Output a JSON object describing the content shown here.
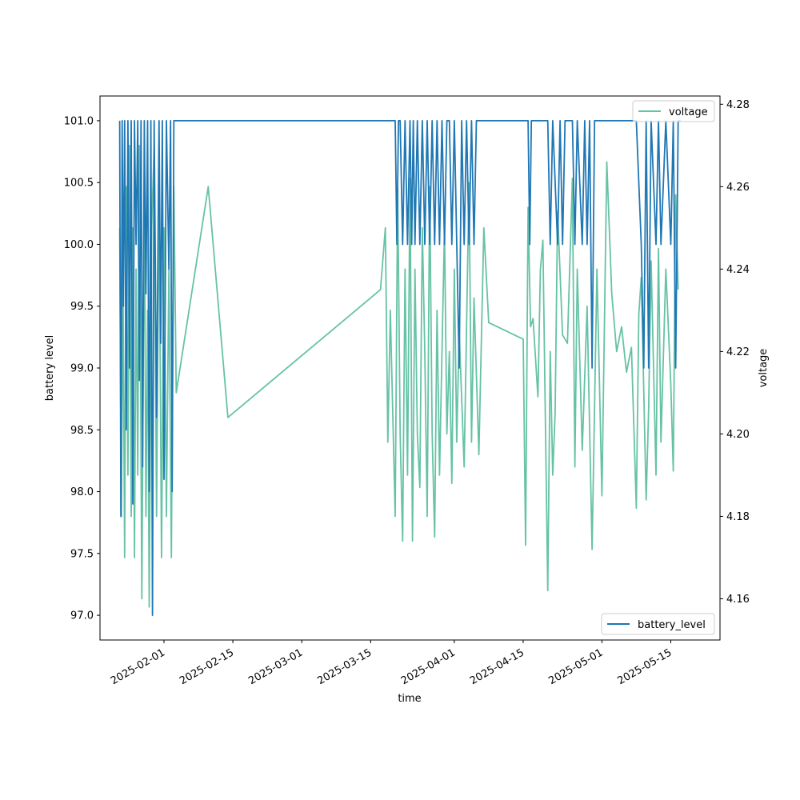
{
  "chart_data": {
    "type": "line",
    "xlabel": "time",
    "ylabel_left": "battery level",
    "ylabel_right": "voltage",
    "x_ticks": [
      "2025-02-01",
      "2025-02-15",
      "2025-03-01",
      "2025-03-15",
      "2025-04-01",
      "2025-04-15",
      "2025-05-01",
      "2025-05-15"
    ],
    "y_left_ticks": [
      "97.0",
      "97.5",
      "98.0",
      "98.5",
      "99.0",
      "99.5",
      "100.0",
      "100.5",
      "101.0"
    ],
    "y_right_ticks": [
      "4.16",
      "4.18",
      "4.20",
      "4.22",
      "4.24",
      "4.26",
      "4.28"
    ],
    "ylim_left": [
      96.8,
      101.2
    ],
    "ylim_right": [
      4.15,
      4.282
    ],
    "xlim": [
      "2025-01-19",
      "2025-05-25"
    ],
    "legend_placement": {
      "battery_level": "lower-right",
      "voltage": "upper-right"
    },
    "colors": {
      "battery_level": "#1f77b4",
      "voltage": "#66c2a5"
    },
    "series": [
      {
        "name": "battery_level",
        "axis": "left",
        "points": [
          [
            "2025-01-23",
            101.0
          ],
          [
            "2025-01-23",
            97.8
          ],
          [
            "2025-01-23",
            101.0
          ],
          [
            "2025-01-23",
            99.5
          ],
          [
            "2025-01-24",
            101.0
          ],
          [
            "2025-01-24",
            98.5
          ],
          [
            "2025-01-24",
            101.0
          ],
          [
            "2025-01-25",
            99.0
          ],
          [
            "2025-01-25",
            101.0
          ],
          [
            "2025-01-25",
            97.9
          ],
          [
            "2025-01-26",
            101.0
          ],
          [
            "2025-01-26",
            100.0
          ],
          [
            "2025-01-26",
            101.0
          ],
          [
            "2025-01-27",
            98.9
          ],
          [
            "2025-01-27",
            101.0
          ],
          [
            "2025-01-27",
            98.2
          ],
          [
            "2025-01-28",
            101.0
          ],
          [
            "2025-01-28",
            99.6
          ],
          [
            "2025-01-28",
            101.0
          ],
          [
            "2025-01-29",
            98.0
          ],
          [
            "2025-01-29",
            101.0
          ],
          [
            "2025-01-29",
            97.0
          ],
          [
            "2025-01-30",
            101.0
          ],
          [
            "2025-01-30",
            98.6
          ],
          [
            "2025-01-31",
            101.0
          ],
          [
            "2025-01-31",
            99.2
          ],
          [
            "2025-01-31",
            101.0
          ],
          [
            "2025-02-01",
            98.1
          ],
          [
            "2025-02-01",
            101.0
          ],
          [
            "2025-02-02",
            99.8
          ],
          [
            "2025-02-02",
            101.0
          ],
          [
            "2025-02-02",
            98.0
          ],
          [
            "2025-02-03",
            101.0
          ],
          [
            "2025-02-03",
            101.0
          ],
          [
            "2025-03-20",
            101.0
          ],
          [
            "2025-03-20",
            100.0
          ],
          [
            "2025-03-20",
            101.0
          ],
          [
            "2025-03-21",
            101.0
          ],
          [
            "2025-03-21",
            100.0
          ],
          [
            "2025-03-22",
            101.0
          ],
          [
            "2025-03-22",
            100.0
          ],
          [
            "2025-03-23",
            101.0
          ],
          [
            "2025-03-23",
            100.0
          ],
          [
            "2025-03-23",
            101.0
          ],
          [
            "2025-03-24",
            100.0
          ],
          [
            "2025-03-24",
            101.0
          ],
          [
            "2025-03-25",
            100.0
          ],
          [
            "2025-03-25",
            101.0
          ],
          [
            "2025-03-26",
            100.0
          ],
          [
            "2025-03-26",
            101.0
          ],
          [
            "2025-03-27",
            100.0
          ],
          [
            "2025-03-27",
            101.0
          ],
          [
            "2025-03-28",
            100.0
          ],
          [
            "2025-03-28",
            101.0
          ],
          [
            "2025-03-29",
            100.0
          ],
          [
            "2025-03-29",
            101.0
          ],
          [
            "2025-03-30",
            100.0
          ],
          [
            "2025-03-30",
            101.0
          ],
          [
            "2025-03-31",
            101.0
          ],
          [
            "2025-03-31",
            100.0
          ],
          [
            "2025-04-01",
            101.0
          ],
          [
            "2025-04-02",
            99.0
          ],
          [
            "2025-04-02",
            101.0
          ],
          [
            "2025-04-03",
            100.0
          ],
          [
            "2025-04-03",
            101.0
          ],
          [
            "2025-04-04",
            100.0
          ],
          [
            "2025-04-04",
            101.0
          ],
          [
            "2025-04-05",
            100.0
          ],
          [
            "2025-04-05",
            101.0
          ],
          [
            "2025-04-16",
            101.0
          ],
          [
            "2025-04-16",
            100.0
          ],
          [
            "2025-04-16",
            101.0
          ],
          [
            "2025-04-20",
            101.0
          ],
          [
            "2025-04-20",
            100.0
          ],
          [
            "2025-04-21",
            101.0
          ],
          [
            "2025-04-22",
            100.0
          ],
          [
            "2025-04-22",
            101.0
          ],
          [
            "2025-04-23",
            100.0
          ],
          [
            "2025-04-23",
            101.0
          ],
          [
            "2025-04-25",
            101.0
          ],
          [
            "2025-04-25",
            100.0
          ],
          [
            "2025-04-26",
            101.0
          ],
          [
            "2025-04-27",
            100.0
          ],
          [
            "2025-04-27",
            101.0
          ],
          [
            "2025-04-28",
            100.0
          ],
          [
            "2025-04-28",
            101.0
          ],
          [
            "2025-04-29",
            99.0
          ],
          [
            "2025-04-29",
            101.0
          ],
          [
            "2025-05-08",
            101.0
          ],
          [
            "2025-05-09",
            100.0
          ],
          [
            "2025-05-09",
            99.0
          ],
          [
            "2025-05-10",
            101.0
          ],
          [
            "2025-05-10",
            99.0
          ],
          [
            "2025-05-11",
            101.0
          ],
          [
            "2025-05-12",
            100.0
          ],
          [
            "2025-05-12",
            101.0
          ],
          [
            "2025-05-13",
            100.0
          ],
          [
            "2025-05-14",
            101.0
          ],
          [
            "2025-05-15",
            100.0
          ],
          [
            "2025-05-15",
            101.0
          ],
          [
            "2025-05-16",
            99.0
          ],
          [
            "2025-05-16",
            101.0
          ],
          [
            "2025-05-17",
            101.0
          ]
        ]
      },
      {
        "name": "voltage",
        "axis": "right",
        "points": [
          [
            "2025-01-23",
            4.25
          ],
          [
            "2025-01-23",
            4.18
          ],
          [
            "2025-01-23",
            4.24
          ],
          [
            "2025-01-24",
            4.17
          ],
          [
            "2025-01-24",
            4.26
          ],
          [
            "2025-01-24",
            4.19
          ],
          [
            "2025-01-25",
            4.27
          ],
          [
            "2025-01-25",
            4.18
          ],
          [
            "2025-01-25",
            4.25
          ],
          [
            "2025-01-26",
            4.17
          ],
          [
            "2025-01-26",
            4.24
          ],
          [
            "2025-01-26",
            4.19
          ],
          [
            "2025-01-27",
            4.27
          ],
          [
            "2025-01-27",
            4.16
          ],
          [
            "2025-01-28",
            4.26
          ],
          [
            "2025-01-28",
            4.18
          ],
          [
            "2025-01-28",
            4.23
          ],
          [
            "2025-01-29",
            4.158
          ],
          [
            "2025-01-29",
            4.25
          ],
          [
            "2025-01-30",
            4.27
          ],
          [
            "2025-01-30",
            4.18
          ],
          [
            "2025-01-31",
            4.26
          ],
          [
            "2025-01-31",
            4.17
          ],
          [
            "2025-02-01",
            4.25
          ],
          [
            "2025-02-01",
            4.18
          ],
          [
            "2025-02-02",
            4.24
          ],
          [
            "2025-02-02",
            4.17
          ],
          [
            "2025-02-03",
            4.26
          ],
          [
            "2025-02-03",
            4.21
          ],
          [
            "2025-02-10",
            4.26
          ],
          [
            "2025-02-14",
            4.204
          ],
          [
            "2025-03-17",
            4.235
          ],
          [
            "2025-03-18",
            4.25
          ],
          [
            "2025-03-18",
            4.198
          ],
          [
            "2025-03-19",
            4.23
          ],
          [
            "2025-03-20",
            4.18
          ],
          [
            "2025-03-20",
            4.26
          ],
          [
            "2025-03-21",
            4.2
          ],
          [
            "2025-03-21",
            4.174
          ],
          [
            "2025-03-22",
            4.24
          ],
          [
            "2025-03-22",
            4.19
          ],
          [
            "2025-03-23",
            4.262
          ],
          [
            "2025-03-23",
            4.174
          ],
          [
            "2025-03-24",
            4.24
          ],
          [
            "2025-03-24",
            4.2
          ],
          [
            "2025-03-25",
            4.187
          ],
          [
            "2025-03-25",
            4.25
          ],
          [
            "2025-03-26",
            4.22
          ],
          [
            "2025-03-26",
            4.18
          ],
          [
            "2025-03-27",
            4.26
          ],
          [
            "2025-03-27",
            4.2
          ],
          [
            "2025-03-28",
            4.175
          ],
          [
            "2025-03-28",
            4.23
          ],
          [
            "2025-03-29",
            4.19
          ],
          [
            "2025-03-30",
            4.25
          ],
          [
            "2025-03-30",
            4.2
          ],
          [
            "2025-03-31",
            4.22
          ],
          [
            "2025-03-31",
            4.188
          ],
          [
            "2025-04-01",
            4.24
          ],
          [
            "2025-04-01",
            4.198
          ],
          [
            "2025-04-02",
            4.225
          ],
          [
            "2025-04-03",
            4.192
          ],
          [
            "2025-04-04",
            4.261
          ],
          [
            "2025-04-04",
            4.198
          ],
          [
            "2025-04-05",
            4.233
          ],
          [
            "2025-04-06",
            4.195
          ],
          [
            "2025-04-07",
            4.25
          ],
          [
            "2025-04-08",
            4.227
          ],
          [
            "2025-04-15",
            4.223
          ],
          [
            "2025-04-15",
            4.173
          ],
          [
            "2025-04-16",
            4.255
          ],
          [
            "2025-04-16",
            4.226
          ],
          [
            "2025-04-17",
            4.228
          ],
          [
            "2025-04-18",
            4.209
          ],
          [
            "2025-04-18",
            4.24
          ],
          [
            "2025-04-19",
            4.247
          ],
          [
            "2025-04-20",
            4.162
          ],
          [
            "2025-04-20",
            4.22
          ],
          [
            "2025-04-21",
            4.19
          ],
          [
            "2025-04-21",
            4.205
          ],
          [
            "2025-04-22",
            4.254
          ],
          [
            "2025-04-23",
            4.224
          ],
          [
            "2025-04-24",
            4.222
          ],
          [
            "2025-04-25",
            4.262
          ],
          [
            "2025-04-25",
            4.192
          ],
          [
            "2025-04-26",
            4.24
          ],
          [
            "2025-04-27",
            4.196
          ],
          [
            "2025-04-28",
            4.231
          ],
          [
            "2025-04-29",
            4.172
          ],
          [
            "2025-04-30",
            4.24
          ],
          [
            "2025-05-01",
            4.185
          ],
          [
            "2025-05-02",
            4.266
          ],
          [
            "2025-05-03",
            4.234
          ],
          [
            "2025-05-04",
            4.22
          ],
          [
            "2025-05-05",
            4.226
          ],
          [
            "2025-05-06",
            4.215
          ],
          [
            "2025-05-07",
            4.221
          ],
          [
            "2025-05-08",
            4.182
          ],
          [
            "2025-05-08",
            4.229
          ],
          [
            "2025-05-09",
            4.238
          ],
          [
            "2025-05-10",
            4.184
          ],
          [
            "2025-05-10",
            4.206
          ],
          [
            "2025-05-11",
            4.242
          ],
          [
            "2025-05-12",
            4.19
          ],
          [
            "2025-05-12",
            4.245
          ],
          [
            "2025-05-13",
            4.198
          ],
          [
            "2025-05-14",
            4.24
          ],
          [
            "2025-05-15",
            4.212
          ],
          [
            "2025-05-15",
            4.191
          ],
          [
            "2025-05-16",
            4.258
          ],
          [
            "2025-05-16",
            4.235
          ]
        ]
      }
    ]
  }
}
